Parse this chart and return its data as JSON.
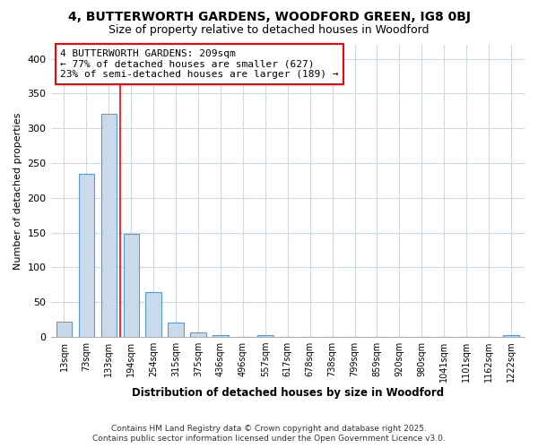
{
  "title1": "4, BUTTERWORTH GARDENS, WOODFORD GREEN, IG8 0BJ",
  "title2": "Size of property relative to detached houses in Woodford",
  "xlabel": "Distribution of detached houses by size in Woodford",
  "ylabel": "Number of detached properties",
  "categories": [
    "13sqm",
    "73sqm",
    "133sqm",
    "194sqm",
    "254sqm",
    "315sqm",
    "375sqm",
    "436sqm",
    "496sqm",
    "557sqm",
    "617sqm",
    "678sqm",
    "738sqm",
    "799sqm",
    "859sqm",
    "920sqm",
    "980sqm",
    "1041sqm",
    "1101sqm",
    "1162sqm",
    "1222sqm"
  ],
  "values": [
    22,
    235,
    321,
    148,
    65,
    21,
    6,
    3,
    0,
    3,
    0,
    0,
    0,
    0,
    0,
    0,
    0,
    0,
    0,
    0,
    2
  ],
  "bar_color": "#c9daea",
  "bar_edge_color": "#5b9bd5",
  "vline_color": "red",
  "vline_pos": 2.5,
  "annotation_text": "4 BUTTERWORTH GARDENS: 209sqm\n← 77% of detached houses are smaller (627)\n23% of semi-detached houses are larger (189) →",
  "annotation_box_color": "white",
  "annotation_box_edge": "red",
  "ylim": [
    0,
    420
  ],
  "yticks": [
    0,
    50,
    100,
    150,
    200,
    250,
    300,
    350,
    400
  ],
  "footer1": "Contains HM Land Registry data © Crown copyright and database right 2025.",
  "footer2": "Contains public sector information licensed under the Open Government Licence v3.0.",
  "bg_color": "#ffffff",
  "plot_bg_color": "#ffffff",
  "grid_color": "#d0d8e4"
}
